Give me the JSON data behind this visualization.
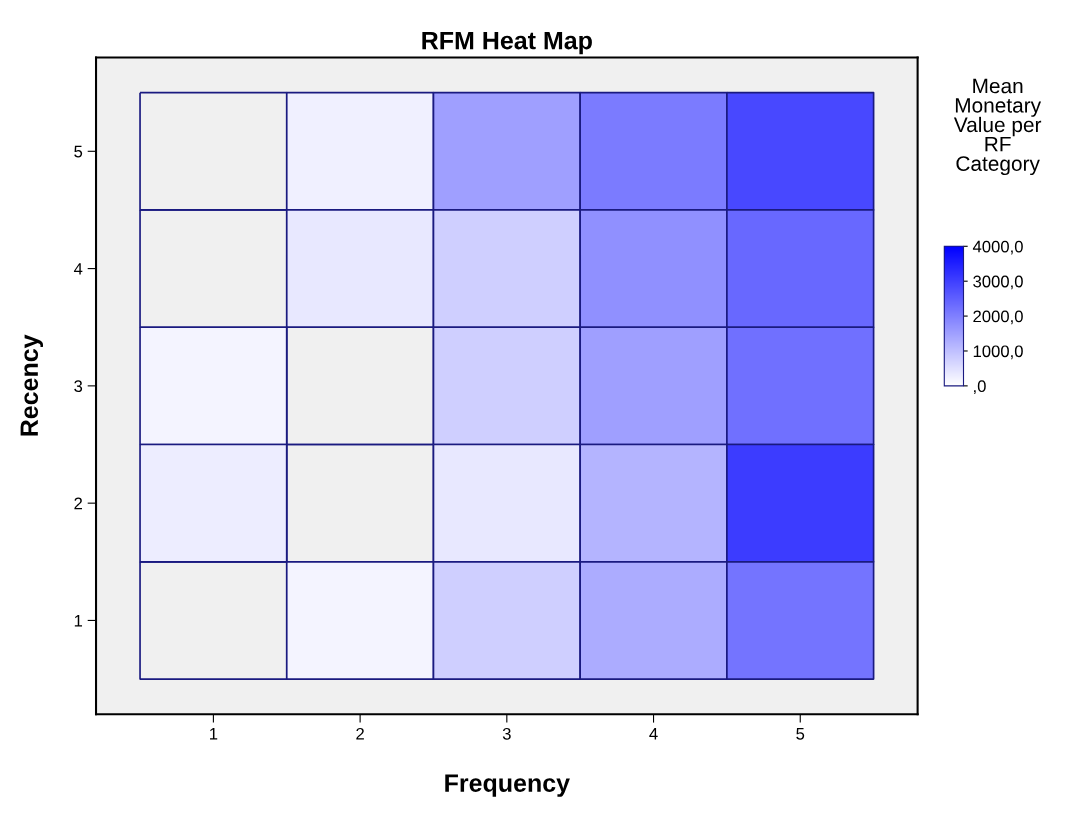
{
  "chart_data": {
    "type": "heatmap",
    "title": "RFM Heat Map",
    "xlabel": "Frequency",
    "ylabel": "Recency",
    "clabel": "Mean\nMonetary\nValue per\nRF\nCategory",
    "categories": [
      "1",
      "2",
      "3",
      "4",
      "5"
    ],
    "y_categories": [
      "5",
      "4",
      "3",
      "2",
      "1"
    ],
    "cells": [
      [
        null,
        240,
        1500,
        2070,
        2870
      ],
      [
        null,
        360,
        750,
        1740,
        2370
      ],
      [
        180,
        null,
        750,
        1500,
        2240
      ],
      [
        290,
        null,
        360,
        1180,
        3060
      ],
      [
        null,
        180,
        750,
        1310,
        2180
      ]
    ],
    "colors": [
      "#ffffff",
      "#0000ff"
    ],
    "clim": [
      0,
      4000
    ],
    "cticks": [
      {
        "value": 4000,
        "label": "4000,0"
      },
      {
        "value": 3000,
        "label": "3000,0"
      },
      {
        "value": 2000,
        "label": "2000,0"
      },
      {
        "value": 1000,
        "label": "1000,0"
      },
      {
        "value": 0,
        "label": ",0"
      }
    ]
  }
}
